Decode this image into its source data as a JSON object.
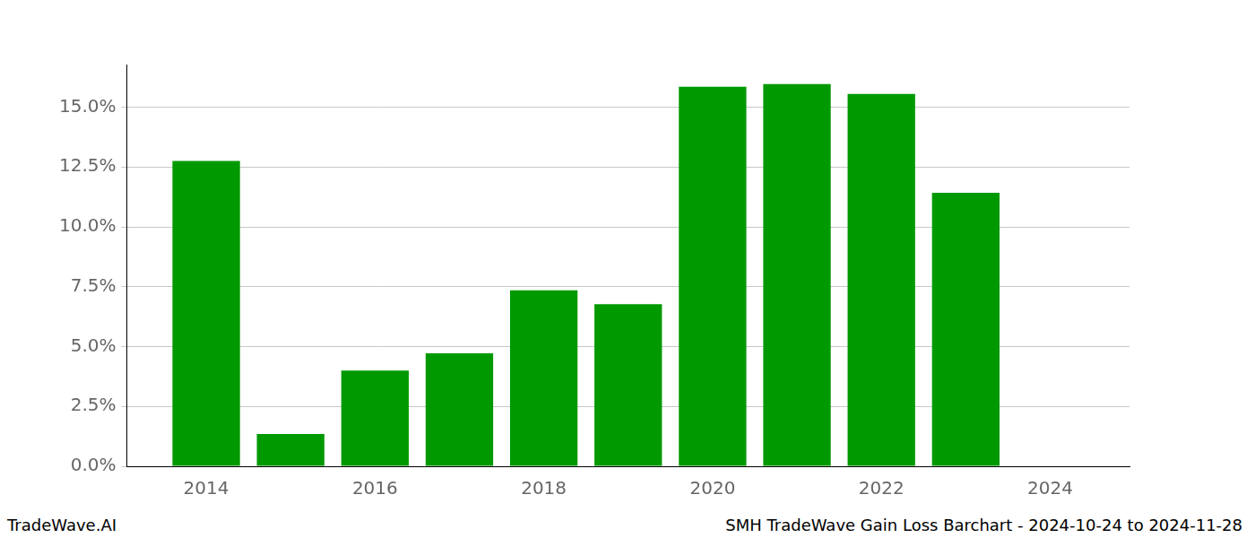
{
  "chart_data": {
    "type": "bar",
    "x": [
      2014,
      2015,
      2016,
      2017,
      2018,
      2019,
      2020,
      2021,
      2022,
      2023,
      2024
    ],
    "values": [
      12.75,
      1.35,
      4.0,
      4.72,
      7.35,
      6.77,
      15.85,
      15.97,
      15.55,
      11.42,
      null
    ],
    "color": "#009900",
    "xlim": [
      2013.06,
      2024.94
    ],
    "xticks": [
      2014,
      2016,
      2018,
      2020,
      2022,
      2024
    ],
    "ylim": [
      0,
      16.78
    ],
    "yticks": [
      {
        "value": 0,
        "label": "0.0%"
      },
      {
        "value": 2.5,
        "label": "2.5%"
      },
      {
        "value": 5,
        "label": "5.0%"
      },
      {
        "value": 7.5,
        "label": "7.5%"
      },
      {
        "value": 10,
        "label": "10.0%"
      },
      {
        "value": 12.5,
        "label": "12.5%"
      },
      {
        "value": 15,
        "label": "15.0%"
      }
    ],
    "grid": true,
    "annotations": [
      "TradeWave.AI",
      "SMH TradeWave Gain Loss Barchart - 2024-10-24 to 2024-11-28"
    ]
  }
}
